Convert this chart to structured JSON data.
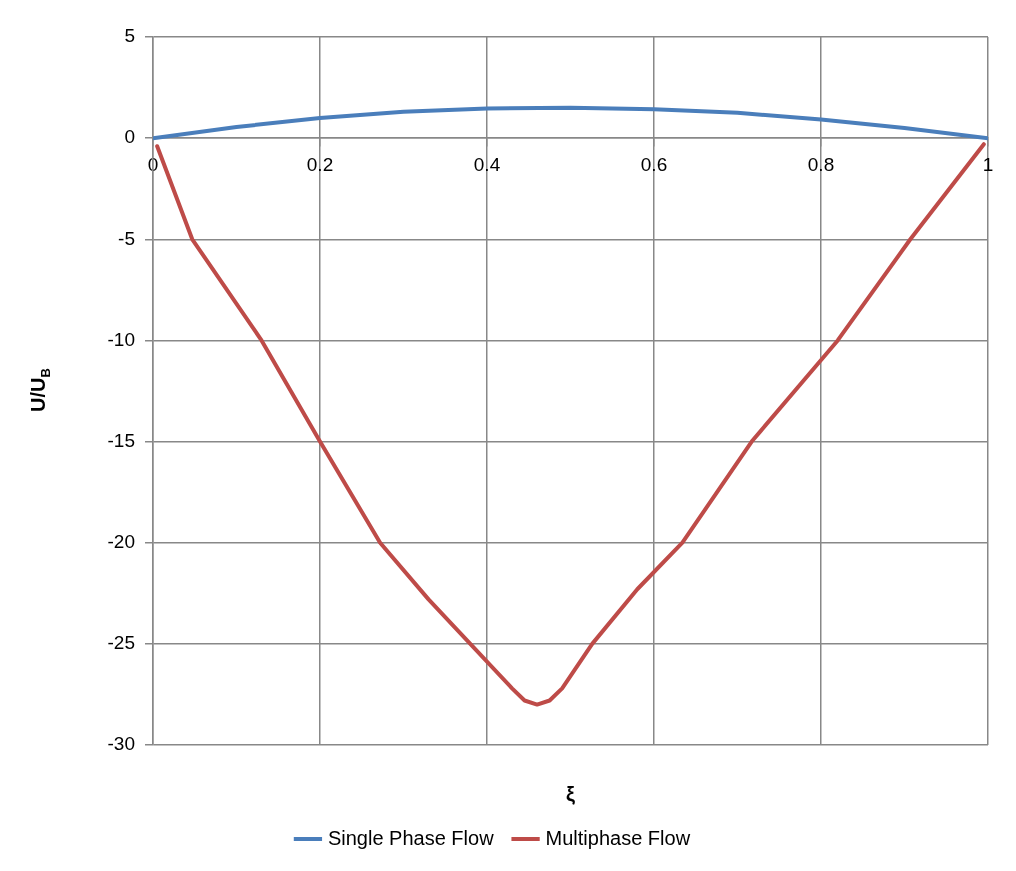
{
  "chart_data": {
    "type": "line",
    "xlabel": "ξ",
    "ylabel": "U/U$_{B}$",
    "xlim": [
      0,
      1
    ],
    "xticks": [
      0,
      0.2,
      0.4,
      0.6,
      0.8,
      1
    ],
    "ylim": [
      -30,
      5
    ],
    "yticks": [
      5,
      0,
      -5,
      -10,
      -15,
      -20,
      -25,
      -30
    ],
    "grid": true,
    "legend": "bottom",
    "marker": "none",
    "line_style": "solid",
    "series": [
      {
        "name": "Single Phase Flow",
        "color": "#4a7ebb",
        "x": [
          0,
          0.1,
          0.2,
          0.3,
          0.4,
          0.5,
          0.6,
          0.7,
          0.8,
          0.9,
          1
        ],
        "values": [
          0,
          0.55,
          1.0,
          1.3,
          1.47,
          1.5,
          1.43,
          1.25,
          0.92,
          0.5,
          0
        ]
      },
      {
        "name": "Multiphase Flow",
        "color": "#be4b48",
        "x": [
          0.005,
          0.047,
          0.13,
          0.2,
          0.272,
          0.33,
          0.38,
          0.43,
          0.445,
          0.46,
          0.475,
          0.49,
          0.526,
          0.58,
          0.634,
          0.717,
          0.82,
          0.907,
          0.995
        ],
        "values": [
          -0.4,
          -5,
          -10,
          -15,
          -20,
          -22.8,
          -25,
          -27.2,
          -27.8,
          -28,
          -27.8,
          -27.2,
          -25,
          -22.3,
          -20,
          -15,
          -10,
          -5,
          -0.3
        ]
      }
    ]
  }
}
